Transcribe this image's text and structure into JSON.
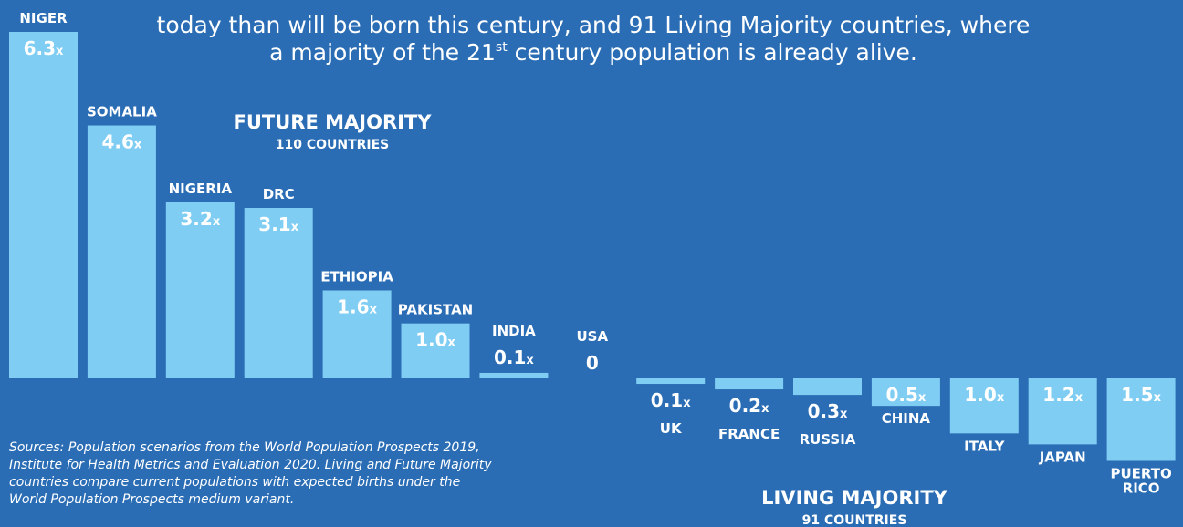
{
  "header": {
    "lines": [
      "today than will be born this century, and 91 Living Majority countries, where",
      [
        "a majority of the 21",
        "st",
        " century population is already alive."
      ]
    ]
  },
  "chart_data": {
    "type": "bar",
    "series": [
      {
        "name": "FUTURE MAJORITY",
        "subtitle": "110 COUNTRIES",
        "color": "#7fcdf3",
        "categories": [
          "NIGER",
          "SOMALIA",
          "NIGERIA",
          "DRC",
          "ETHIOPIA",
          "PAKISTAN",
          "INDIA",
          "USA"
        ],
        "values": [
          6.3,
          4.6,
          3.2,
          3.1,
          1.6,
          1.0,
          0.1,
          0
        ],
        "value_labels": [
          "6.3x",
          "4.6x",
          "3.2x",
          "3.1x",
          "1.6x",
          "1.0x",
          "0.1x",
          "0"
        ]
      },
      {
        "name": "LIVING MAJORITY",
        "subtitle": "91 COUNTRIES",
        "color": "#7fcdf3",
        "categories": [
          "UK",
          "FRANCE",
          "RUSSIA",
          "CHINA",
          "ITALY",
          "JAPAN",
          "PUERTO RICO"
        ],
        "values": [
          0.1,
          0.2,
          0.3,
          0.5,
          1.0,
          1.2,
          1.5
        ],
        "value_labels": [
          "0.1x",
          "0.2x",
          "0.3x",
          "0.5x",
          "1.0x",
          "1.2x",
          "1.5x"
        ]
      }
    ]
  },
  "sources": [
    "Sources: Population scenarios from the World Population Prospects 2019,",
    "Institute for Health Metrics and Evaluation 2020. Living and Future Majority",
    "countries compare current populations with expected births under the",
    "World Population Prospects medium variant."
  ]
}
